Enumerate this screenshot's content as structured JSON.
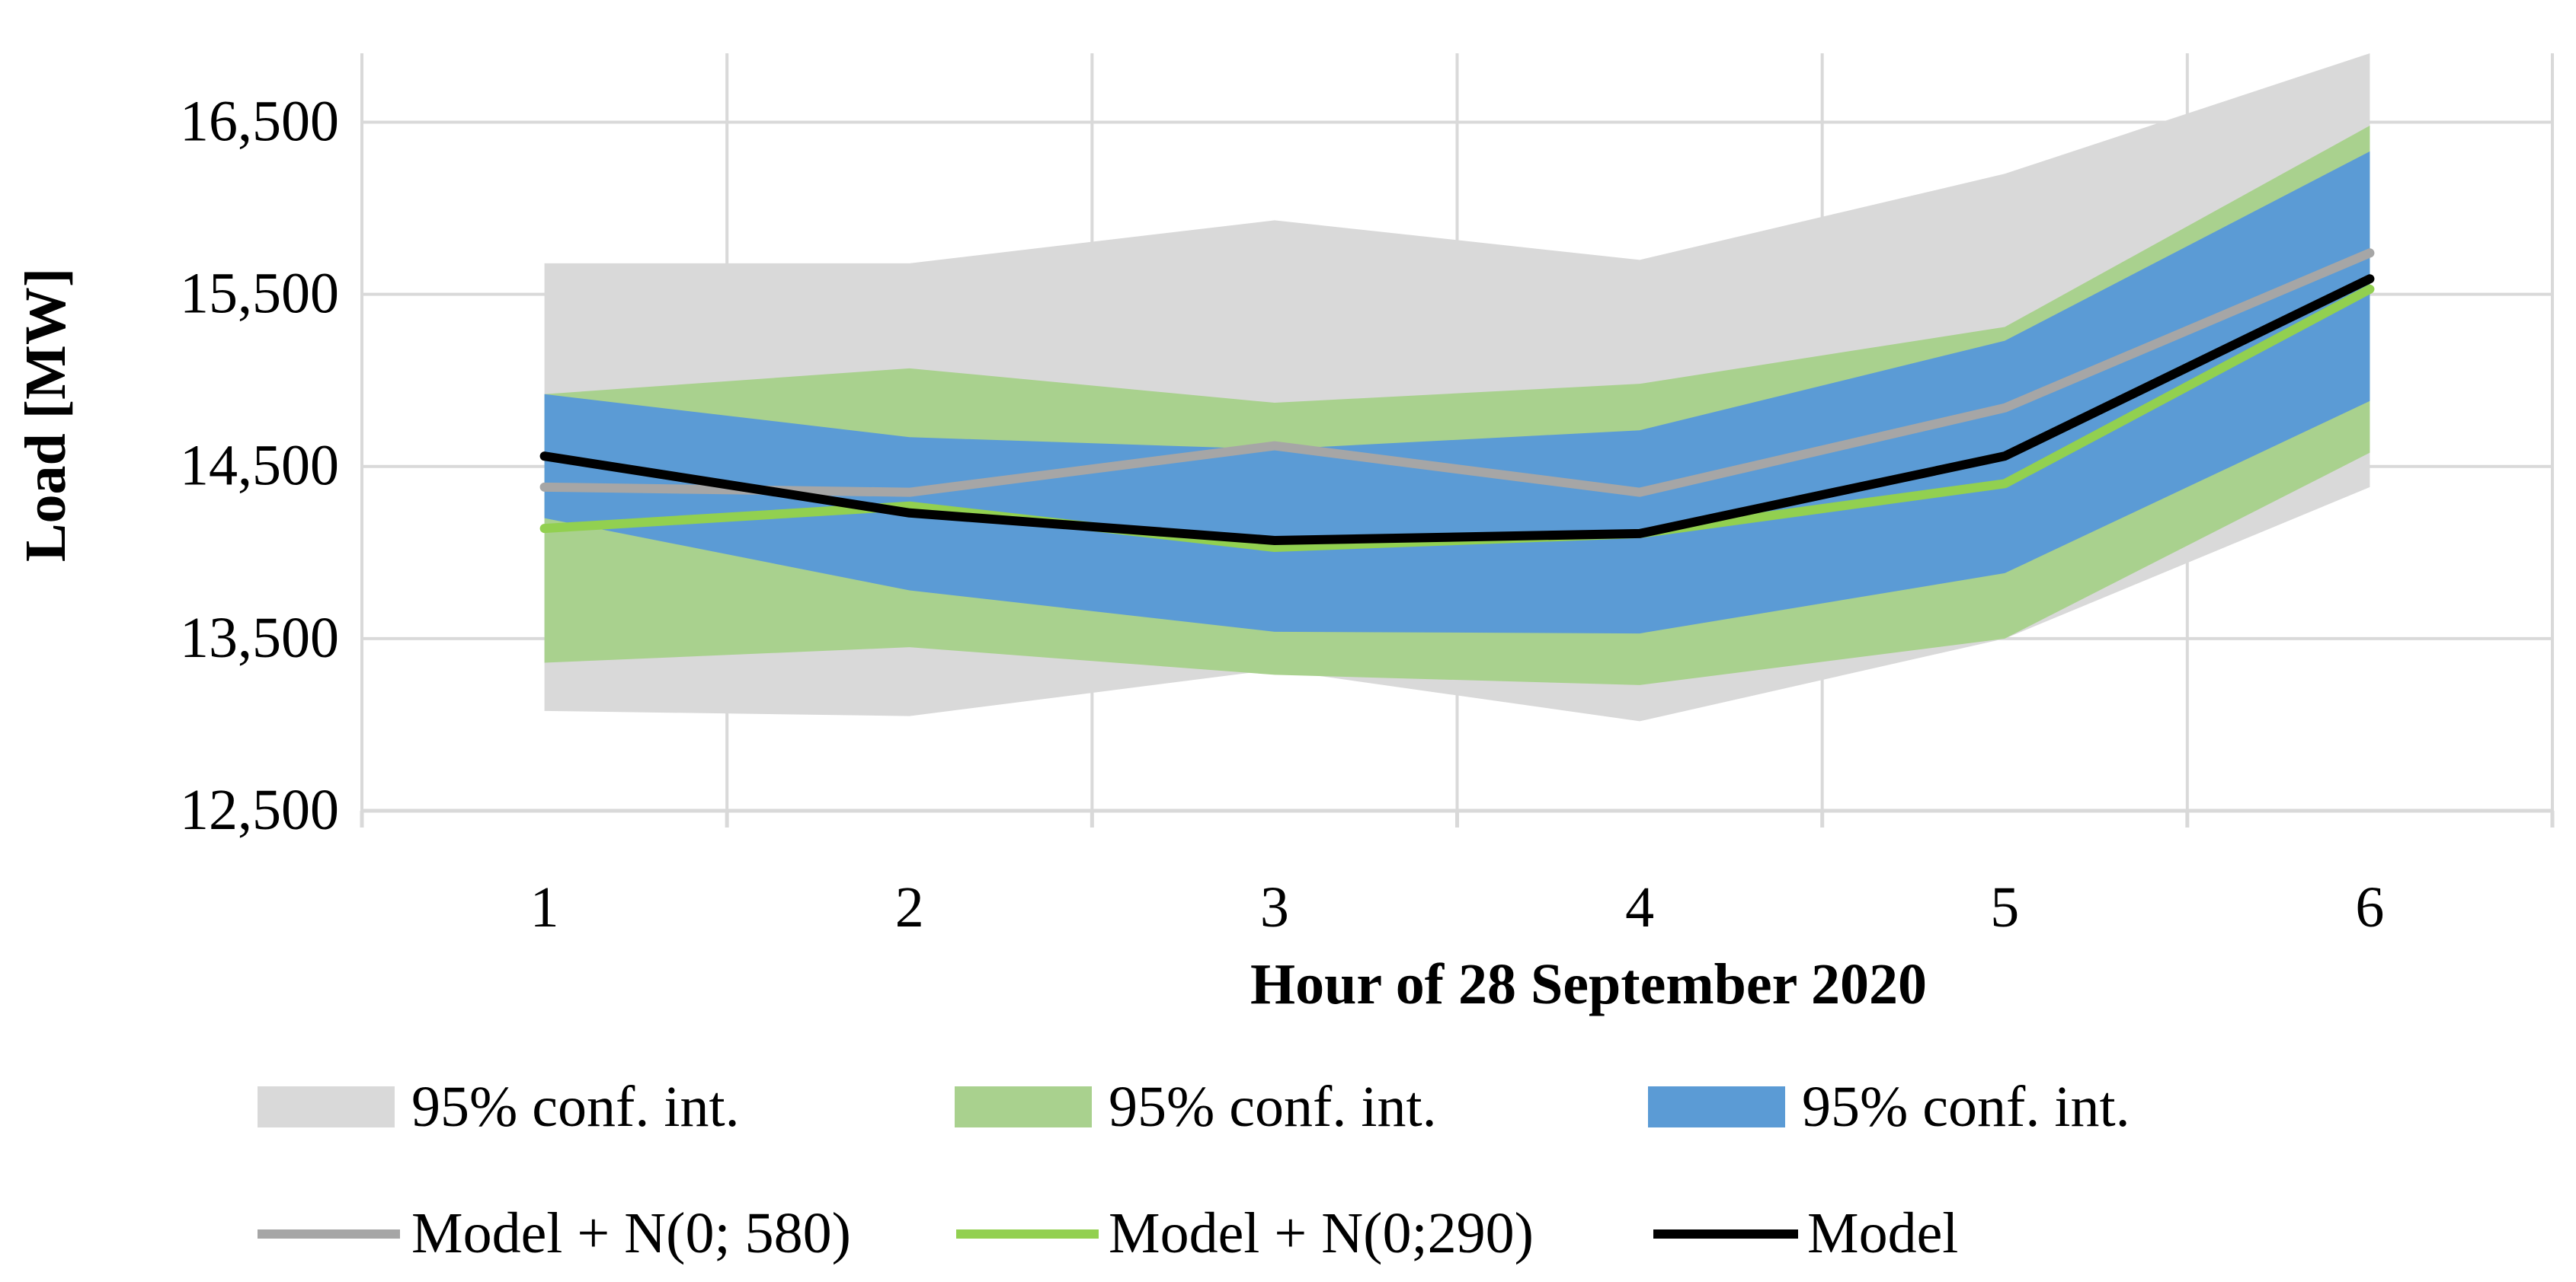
{
  "chart_data": {
    "type": "line",
    "title": "",
    "xlabel": "Hour of 28 September 2020",
    "ylabel": "Load [MW]",
    "categories": [
      "1",
      "2",
      "3",
      "4",
      "5",
      "6"
    ],
    "ylim": [
      12500,
      16900
    ],
    "yticks": [
      12500,
      13500,
      14500,
      15500,
      16500
    ],
    "ytick_labels": [
      "12,500",
      "13,500",
      "14,500",
      "15,500",
      "16,500"
    ],
    "grid": true,
    "bands": [
      {
        "name": "95% conf. int.",
        "color": "#d9d9d9",
        "upper": [
          15680,
          15680,
          15930,
          15700,
          16200,
          17000
        ],
        "lower": [
          13080,
          13050,
          13320,
          13020,
          13500,
          14380
        ]
      },
      {
        "name": "95% conf. int.",
        "color": "#a9d18e",
        "upper": [
          14920,
          15070,
          14870,
          14980,
          15310,
          16480
        ],
        "lower": [
          13360,
          13450,
          13290,
          13230,
          13500,
          14580
        ]
      },
      {
        "name": "95% conf. int.",
        "color": "#5b9bd5",
        "upper": [
          14920,
          14670,
          14600,
          14710,
          15230,
          16330
        ],
        "lower": [
          14200,
          13780,
          13540,
          13530,
          13880,
          14880
        ]
      }
    ],
    "series": [
      {
        "name": "Model + N(0; 580)",
        "color": "#a6a6a6",
        "values": [
          14380,
          14350,
          14620,
          14350,
          14840,
          15740
        ]
      },
      {
        "name": "Model + N(0;290)",
        "color": "#92d050",
        "values": [
          14140,
          14270,
          14030,
          14110,
          14400,
          15530
        ]
      },
      {
        "name": "Model",
        "color": "#000000",
        "values": [
          14560,
          14230,
          14070,
          14110,
          14560,
          15590
        ]
      }
    ]
  }
}
